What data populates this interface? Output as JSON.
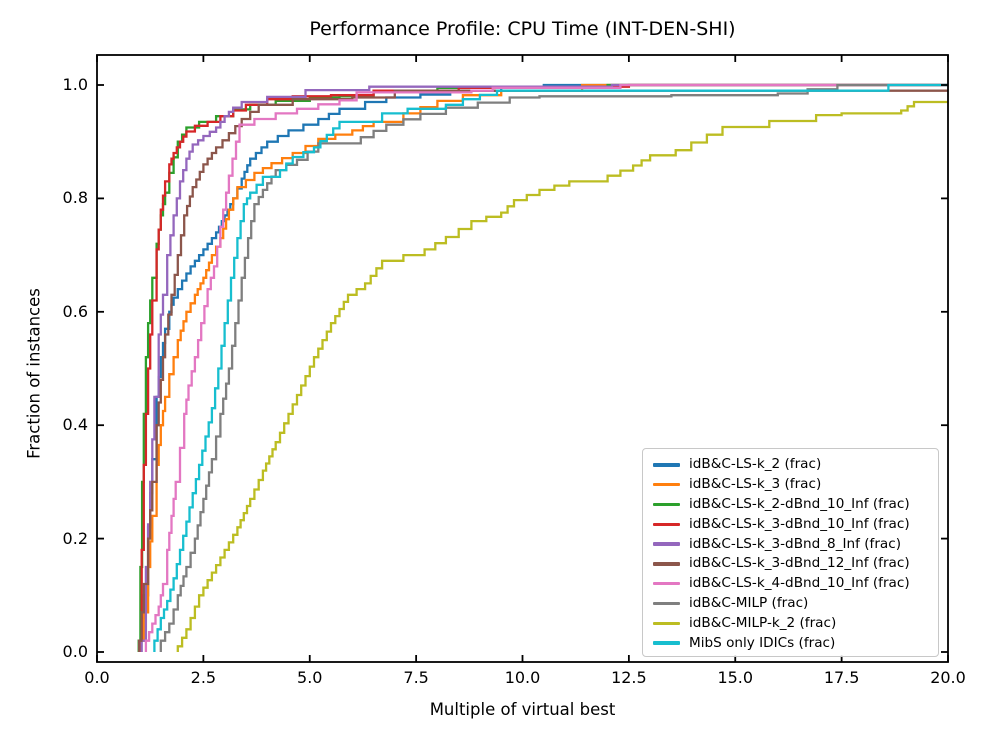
{
  "chart_data": {
    "type": "line",
    "subtype": "step-after-performance-profile",
    "title": "Performance Profile: CPU Time (INT-DEN-SHI)",
    "xlabel": "Multiple of virtual best",
    "ylabel": "Fraction of instances",
    "xlim": [
      0,
      20
    ],
    "ylim": [
      0,
      1.0
    ],
    "grid": false,
    "legend_position": "lower right",
    "xticks": [
      "0.0",
      "2.5",
      "5.0",
      "7.5",
      "10.0",
      "12.5",
      "15.0",
      "17.5",
      "20.0"
    ],
    "yticks": [
      "0.0",
      "0.2",
      "0.4",
      "0.6",
      "0.8",
      "1.0"
    ],
    "axis_color": "#000000",
    "series": [
      {
        "name": "idB&C-LS-k_2 (frac)",
        "color": "#1f77b4",
        "points": [
          [
            1.0,
            0.02
          ],
          [
            1.1,
            0.1
          ],
          [
            1.2,
            0.22
          ],
          [
            1.3,
            0.34
          ],
          [
            1.4,
            0.45
          ],
          [
            1.5,
            0.52
          ],
          [
            1.6,
            0.57
          ],
          [
            1.7,
            0.6
          ],
          [
            1.8,
            0.625
          ],
          [
            2.0,
            0.655
          ],
          [
            2.2,
            0.68
          ],
          [
            2.4,
            0.7
          ],
          [
            2.6,
            0.72
          ],
          [
            2.8,
            0.74
          ],
          [
            3.0,
            0.77
          ],
          [
            3.2,
            0.8
          ],
          [
            3.4,
            0.835
          ],
          [
            3.6,
            0.87
          ],
          [
            4.0,
            0.9
          ],
          [
            4.5,
            0.92
          ],
          [
            5.2,
            0.94
          ],
          [
            5.7,
            0.958
          ],
          [
            6.3,
            0.97
          ],
          [
            6.8,
            0.978
          ],
          [
            7.6,
            0.983
          ],
          [
            8.3,
            0.99
          ],
          [
            9.5,
            0.995
          ],
          [
            10.5,
            1.0
          ],
          [
            20,
            1.0
          ]
        ]
      },
      {
        "name": "idB&C-LS-k_3 (frac)",
        "color": "#ff7f0e",
        "points": [
          [
            1.02,
            0.02
          ],
          [
            1.1,
            0.07
          ],
          [
            1.2,
            0.15
          ],
          [
            1.3,
            0.24
          ],
          [
            1.4,
            0.33
          ],
          [
            1.5,
            0.4
          ],
          [
            1.6,
            0.45
          ],
          [
            1.7,
            0.49
          ],
          [
            1.9,
            0.55
          ],
          [
            2.1,
            0.6
          ],
          [
            2.3,
            0.63
          ],
          [
            2.5,
            0.66
          ],
          [
            2.7,
            0.7
          ],
          [
            2.9,
            0.73
          ],
          [
            3.1,
            0.78
          ],
          [
            3.3,
            0.82
          ],
          [
            3.7,
            0.845
          ],
          [
            4.1,
            0.862
          ],
          [
            4.6,
            0.88
          ],
          [
            5.2,
            0.905
          ],
          [
            6.0,
            0.92
          ],
          [
            6.5,
            0.935
          ],
          [
            7.2,
            0.95
          ],
          [
            8.0,
            0.972
          ],
          [
            8.6,
            0.982
          ],
          [
            9.5,
            0.99
          ],
          [
            11.4,
            1.0
          ],
          [
            20,
            1.0
          ]
        ]
      },
      {
        "name": "idB&C-LS-k_2-dBnd_10_Inf (frac)",
        "color": "#2ca02c",
        "points": [
          [
            0.98,
            0.02
          ],
          [
            1.02,
            0.15
          ],
          [
            1.06,
            0.3
          ],
          [
            1.1,
            0.42
          ],
          [
            1.15,
            0.52
          ],
          [
            1.2,
            0.58
          ],
          [
            1.3,
            0.66
          ],
          [
            1.4,
            0.72
          ],
          [
            1.5,
            0.77
          ],
          [
            1.6,
            0.81
          ],
          [
            1.7,
            0.845
          ],
          [
            1.9,
            0.9
          ],
          [
            2.1,
            0.925
          ],
          [
            2.4,
            0.935
          ],
          [
            2.8,
            0.945
          ],
          [
            3.2,
            0.957
          ],
          [
            3.6,
            0.965
          ],
          [
            4.2,
            0.972
          ],
          [
            5.0,
            0.978
          ],
          [
            5.7,
            0.98
          ],
          [
            6.5,
            0.99
          ],
          [
            8.0,
            0.995
          ],
          [
            10.0,
            0.997
          ],
          [
            12.0,
            1.0
          ],
          [
            20,
            1.0
          ]
        ]
      },
      {
        "name": "idB&C-LS-k_3-dBnd_10_Inf (frac)",
        "color": "#d62728",
        "points": [
          [
            1.0,
            0.02
          ],
          [
            1.05,
            0.18
          ],
          [
            1.1,
            0.33
          ],
          [
            1.15,
            0.42
          ],
          [
            1.2,
            0.5
          ],
          [
            1.3,
            0.62
          ],
          [
            1.4,
            0.71
          ],
          [
            1.5,
            0.78
          ],
          [
            1.6,
            0.83
          ],
          [
            1.7,
            0.86
          ],
          [
            1.8,
            0.88
          ],
          [
            1.95,
            0.9
          ],
          [
            2.1,
            0.918
          ],
          [
            2.3,
            0.928
          ],
          [
            2.6,
            0.935
          ],
          [
            2.9,
            0.945
          ],
          [
            3.2,
            0.955
          ],
          [
            3.5,
            0.965
          ],
          [
            4.0,
            0.975
          ],
          [
            4.6,
            0.98
          ],
          [
            5.5,
            0.982
          ],
          [
            6.5,
            0.99
          ],
          [
            8.5,
            0.995
          ],
          [
            11.0,
            0.997
          ],
          [
            12.5,
            1.0
          ],
          [
            20,
            1.0
          ]
        ]
      },
      {
        "name": "idB&C-LS-k_3-dBnd_8_Inf (frac)",
        "color": "#9467bd",
        "points": [
          [
            1.05,
            0.02
          ],
          [
            1.15,
            0.15
          ],
          [
            1.25,
            0.3
          ],
          [
            1.35,
            0.45
          ],
          [
            1.45,
            0.56
          ],
          [
            1.55,
            0.63
          ],
          [
            1.65,
            0.7
          ],
          [
            1.8,
            0.77
          ],
          [
            1.95,
            0.83
          ],
          [
            2.1,
            0.87
          ],
          [
            2.25,
            0.895
          ],
          [
            2.5,
            0.91
          ],
          [
            2.8,
            0.925
          ],
          [
            3.0,
            0.945
          ],
          [
            3.2,
            0.96
          ],
          [
            3.4,
            0.97
          ],
          [
            4.0,
            0.979
          ],
          [
            4.9,
            0.991
          ],
          [
            6.4,
            0.997
          ],
          [
            12.1,
            1.0
          ],
          [
            20,
            1.0
          ]
        ]
      },
      {
        "name": "idB&C-LS-k_3-dBnd_12_Inf (frac)",
        "color": "#8c564b",
        "points": [
          [
            0.99,
            0.02
          ],
          [
            1.1,
            0.12
          ],
          [
            1.2,
            0.2
          ],
          [
            1.3,
            0.3
          ],
          [
            1.4,
            0.4
          ],
          [
            1.5,
            0.48
          ],
          [
            1.6,
            0.56
          ],
          [
            1.75,
            0.63
          ],
          [
            1.9,
            0.7
          ],
          [
            2.05,
            0.77
          ],
          [
            2.25,
            0.82
          ],
          [
            2.5,
            0.86
          ],
          [
            2.8,
            0.89
          ],
          [
            3.1,
            0.915
          ],
          [
            3.4,
            0.94
          ],
          [
            3.8,
            0.965
          ],
          [
            4.6,
            0.975
          ],
          [
            6.0,
            0.978
          ],
          [
            7.0,
            0.99
          ],
          [
            20,
            0.99
          ]
        ]
      },
      {
        "name": "idB&C-LS-k_4-dBnd_10_Inf (frac)",
        "color": "#e377c2",
        "points": [
          [
            1.15,
            0.02
          ],
          [
            1.3,
            0.05
          ],
          [
            1.45,
            0.08
          ],
          [
            1.55,
            0.12
          ],
          [
            1.65,
            0.18
          ],
          [
            1.75,
            0.24
          ],
          [
            1.85,
            0.3
          ],
          [
            1.95,
            0.36
          ],
          [
            2.05,
            0.42
          ],
          [
            2.15,
            0.47
          ],
          [
            2.3,
            0.52
          ],
          [
            2.45,
            0.58
          ],
          [
            2.6,
            0.64
          ],
          [
            2.75,
            0.68
          ],
          [
            2.9,
            0.75
          ],
          [
            3.1,
            0.84
          ],
          [
            3.35,
            0.93
          ],
          [
            3.7,
            0.94
          ],
          [
            4.2,
            0.95
          ],
          [
            4.7,
            0.958
          ],
          [
            5.2,
            0.966
          ],
          [
            5.7,
            0.973
          ],
          [
            6.1,
            0.987
          ],
          [
            8.8,
            0.99
          ],
          [
            9.3,
            0.995
          ],
          [
            12.3,
            1.0
          ],
          [
            20,
            1.0
          ]
        ]
      },
      {
        "name": "idB&C-MILP (frac)",
        "color": "#7f7f7f",
        "points": [
          [
            1.5,
            0.02
          ],
          [
            1.7,
            0.05
          ],
          [
            1.9,
            0.1
          ],
          [
            2.1,
            0.15
          ],
          [
            2.3,
            0.2
          ],
          [
            2.5,
            0.27
          ],
          [
            2.7,
            0.34
          ],
          [
            2.9,
            0.42
          ],
          [
            3.1,
            0.5
          ],
          [
            3.25,
            0.58
          ],
          [
            3.4,
            0.66
          ],
          [
            3.55,
            0.73
          ],
          [
            3.7,
            0.79
          ],
          [
            3.9,
            0.815
          ],
          [
            4.2,
            0.85
          ],
          [
            4.7,
            0.868
          ],
          [
            5.2,
            0.897
          ],
          [
            6.2,
            0.908
          ],
          [
            6.8,
            0.93
          ],
          [
            7.6,
            0.949
          ],
          [
            8.2,
            0.96
          ],
          [
            9.7,
            0.978
          ],
          [
            10.4,
            0.98
          ],
          [
            13.5,
            0.982
          ],
          [
            16.0,
            0.985
          ],
          [
            17.4,
            1.0
          ],
          [
            20,
            1.0
          ]
        ]
      },
      {
        "name": "idB&C-MILP-k_2 (frac)",
        "color": "#bcbd22",
        "points": [
          [
            1.9,
            0.01
          ],
          [
            2.1,
            0.04
          ],
          [
            2.4,
            0.1
          ],
          [
            2.7,
            0.14
          ],
          [
            3.0,
            0.18
          ],
          [
            3.3,
            0.22
          ],
          [
            3.6,
            0.27
          ],
          [
            3.9,
            0.32
          ],
          [
            4.2,
            0.37
          ],
          [
            4.5,
            0.42
          ],
          [
            4.8,
            0.47
          ],
          [
            5.1,
            0.52
          ],
          [
            5.5,
            0.58
          ],
          [
            5.9,
            0.63
          ],
          [
            6.3,
            0.65
          ],
          [
            6.7,
            0.69
          ],
          [
            7.7,
            0.71
          ],
          [
            8.2,
            0.732
          ],
          [
            8.8,
            0.76
          ],
          [
            9.5,
            0.775
          ],
          [
            9.8,
            0.797
          ],
          [
            10.4,
            0.815
          ],
          [
            11.1,
            0.83
          ],
          [
            12.0,
            0.84
          ],
          [
            12.6,
            0.858
          ],
          [
            13.0,
            0.876
          ],
          [
            13.6,
            0.885
          ],
          [
            14.7,
            0.926
          ],
          [
            16.9,
            0.947
          ],
          [
            17.5,
            0.95
          ],
          [
            18.9,
            0.955
          ],
          [
            19.2,
            0.97
          ],
          [
            20,
            0.97
          ]
        ]
      },
      {
        "name": "MibS only IDICs (frac)",
        "color": "#17becf",
        "points": [
          [
            1.35,
            0.02
          ],
          [
            1.5,
            0.06
          ],
          [
            1.65,
            0.09
          ],
          [
            1.8,
            0.13
          ],
          [
            1.95,
            0.18
          ],
          [
            2.1,
            0.23
          ],
          [
            2.25,
            0.28
          ],
          [
            2.4,
            0.33
          ],
          [
            2.55,
            0.38
          ],
          [
            2.7,
            0.43
          ],
          [
            2.85,
            0.5
          ],
          [
            3.0,
            0.58
          ],
          [
            3.15,
            0.66
          ],
          [
            3.3,
            0.73
          ],
          [
            3.45,
            0.79
          ],
          [
            3.6,
            0.81
          ],
          [
            3.9,
            0.838
          ],
          [
            4.3,
            0.85
          ],
          [
            4.6,
            0.873
          ],
          [
            5.1,
            0.89
          ],
          [
            5.4,
            0.912
          ],
          [
            5.7,
            0.935
          ],
          [
            6.7,
            0.95
          ],
          [
            7.3,
            0.958
          ],
          [
            8.2,
            0.965
          ],
          [
            8.6,
            0.975
          ],
          [
            9.4,
            0.99
          ],
          [
            13.2,
            0.99
          ],
          [
            18.6,
            1.0
          ],
          [
            20,
            1.0
          ]
        ]
      }
    ]
  }
}
